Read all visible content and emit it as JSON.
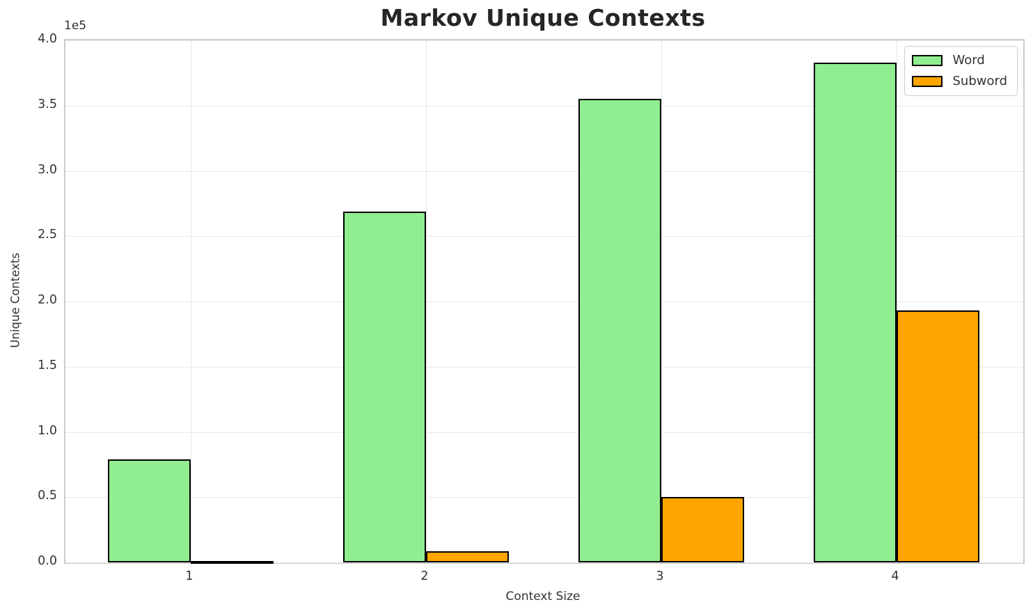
{
  "chart_data": {
    "type": "bar",
    "title": "Markov Unique Contexts",
    "xlabel": "Context Size",
    "ylabel": "Unique Contexts",
    "offset_text": "1e5",
    "categories": [
      "1",
      "2",
      "3",
      "4"
    ],
    "series": [
      {
        "name": "Word",
        "color": "#90EE90",
        "values": [
          79000,
          269000,
          355000,
          383000
        ]
      },
      {
        "name": "Subword",
        "color": "#FFA500",
        "values": [
          1100,
          8500,
          50000,
          193000
        ]
      }
    ],
    "ylim": [
      0,
      400000
    ],
    "y_tick_values": [
      0,
      50000,
      100000,
      150000,
      200000,
      250000,
      300000,
      350000,
      400000
    ],
    "y_tick_labels": [
      "0.0",
      "0.5",
      "1.0",
      "1.5",
      "2.0",
      "2.5",
      "3.0",
      "3.5",
      "4.0"
    ],
    "x_tick_labels": [
      "1",
      "2",
      "3",
      "4"
    ],
    "grid": true,
    "legend_position": "upper right",
    "bar_edge_color": "#000000",
    "background_color": "#ffffff",
    "grid_color": "#e8e8e8",
    "spine_color": "#cccccc",
    "text_color": "#333333",
    "title_color": "#262626"
  }
}
